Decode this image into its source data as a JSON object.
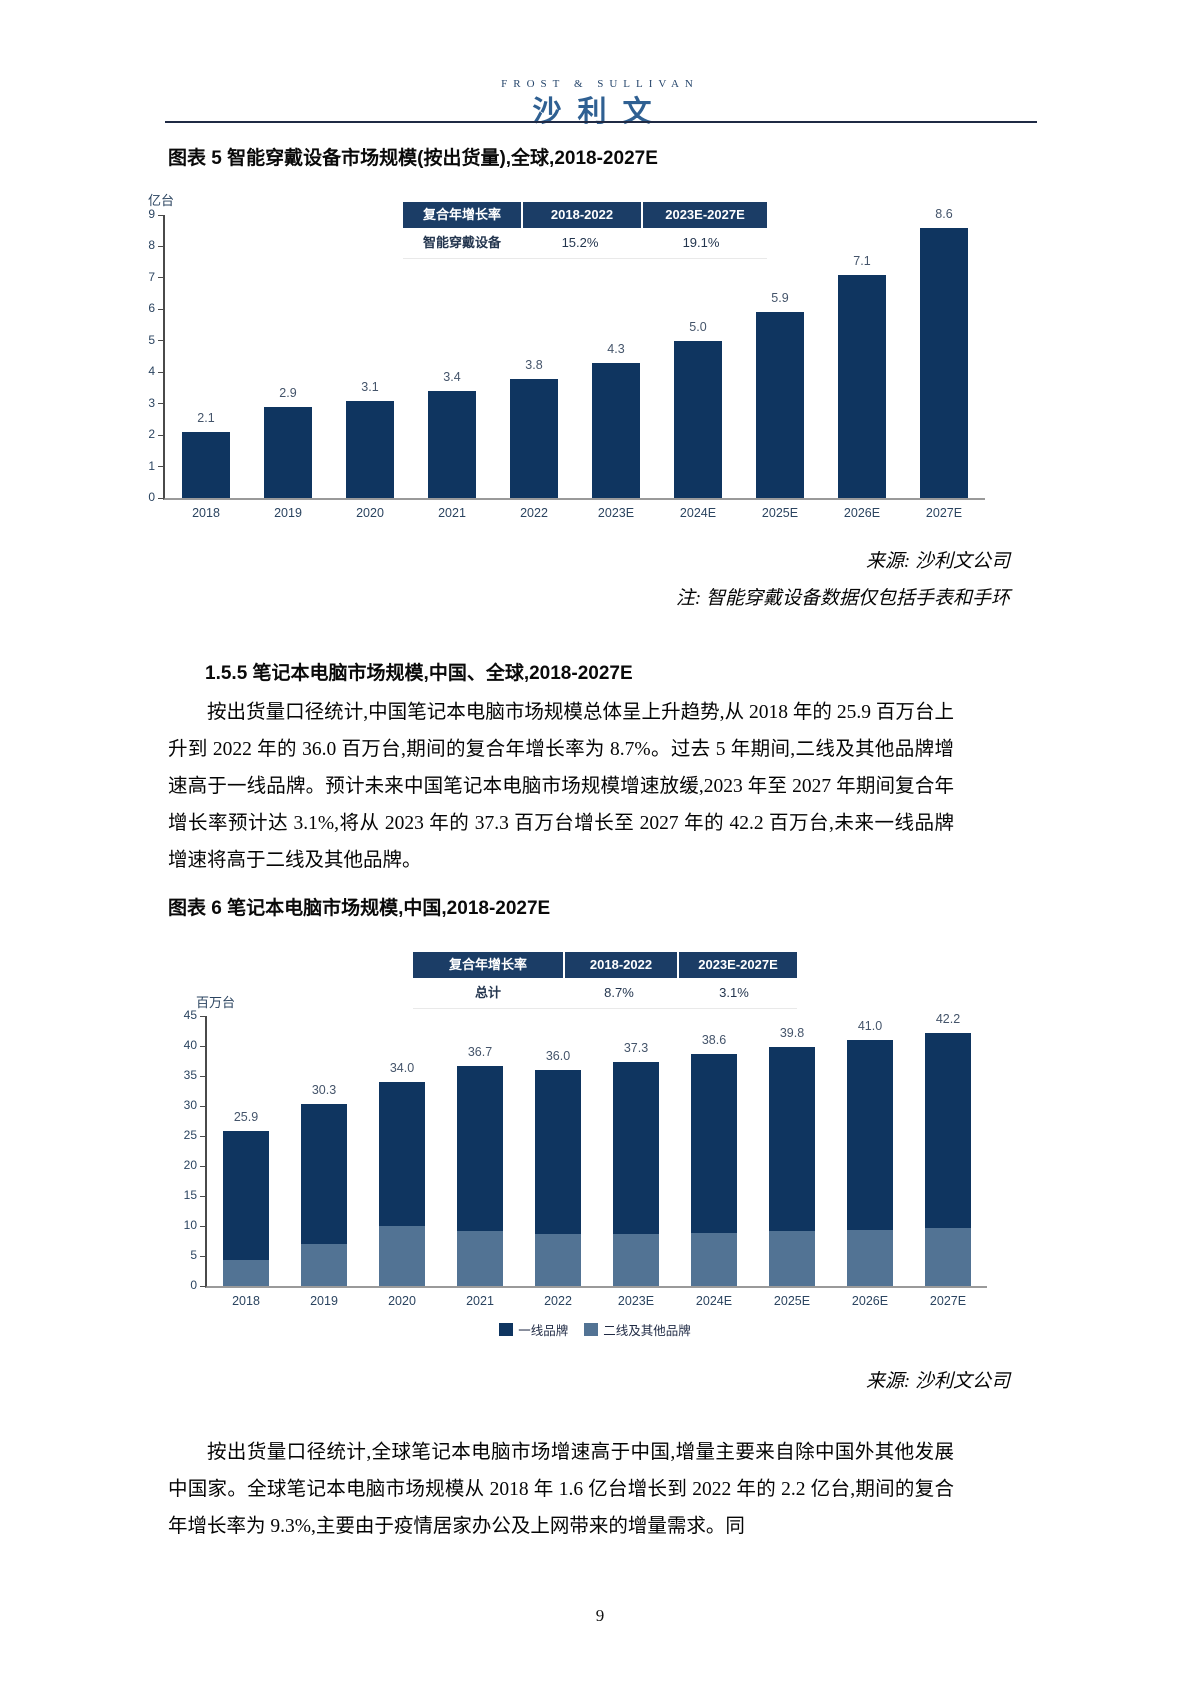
{
  "header": {
    "logo_en": "FROST & SULLIVAN",
    "logo_cn": "沙利文"
  },
  "figure5": {
    "title": "图表 5 智能穿戴设备市场规模(按出货量),全球,2018-2027E",
    "source": "来源: 沙利文公司",
    "note": "注: 智能穿戴设备数据仅包括手表和手环"
  },
  "section": {
    "heading": "1.5.5 笔记本电脑市场规模,中国、全球,2018-2027E",
    "paragraph": "按出货量口径统计,中国笔记本电脑市场规模总体呈上升趋势,从 2018 年的 25.9 百万台上升到 2022 年的 36.0 百万台,期间的复合年增长率为 8.7%。过去 5 年期间,二线及其他品牌增速高于一线品牌。预计未来中国笔记本电脑市场规模增速放缓,2023 年至 2027 年期间复合年增长率预计达 3.1%,将从 2023 年的 37.3 百万台增长至 2027 年的 42.2 百万台,未来一线品牌增速将高于二线及其他品牌。"
  },
  "figure6": {
    "title": "图表 6 笔记本电脑市场规模,中国,2018-2027E",
    "source": "来源: 沙利文公司"
  },
  "closing_paragraph": "按出货量口径统计,全球笔记本电脑市场增速高于中国,增量主要来自除中国外其他发展中国家。全球笔记本电脑市场规模从 2018 年 1.6 亿台增长到 2022 年的 2.2 亿台,期间的复合年增长率为 9.3%,主要由于疫情居家办公及上网带来的增量需求。同",
  "page_number": "9",
  "chart_data": [
    {
      "type": "bar",
      "title": "智能穿戴设备市场规模(按出货量),全球,2018-2027E",
      "categories": [
        "2018",
        "2019",
        "2020",
        "2021",
        "2022",
        "2023E",
        "2024E",
        "2025E",
        "2026E",
        "2027E"
      ],
      "values": [
        2.1,
        2.9,
        3.1,
        3.4,
        3.8,
        4.3,
        5.0,
        5.9,
        7.1,
        8.6
      ],
      "ylabel": "亿台",
      "xlabel": "",
      "ylim": [
        0,
        9
      ],
      "ytick_step": 1,
      "grid": false,
      "bar_color": "#0F3560",
      "cagr": {
        "header": [
          "复合年增长率",
          "2018-2022",
          "2023E-2027E"
        ],
        "rows": [
          {
            "name": "智能穿戴设备",
            "values": [
              "15.2%",
              "19.1%"
            ]
          }
        ]
      }
    },
    {
      "type": "bar",
      "stacked": true,
      "title": "笔记本电脑市场规模,中国,2018-2027E",
      "categories": [
        "2018",
        "2019",
        "2020",
        "2021",
        "2022",
        "2023E",
        "2024E",
        "2025E",
        "2026E",
        "2027E"
      ],
      "series": [
        {
          "name": "一线品牌",
          "color": "#0F3560",
          "values": [
            21.5,
            23.3,
            24.0,
            27.5,
            27.4,
            28.6,
            29.7,
            30.7,
            31.7,
            32.6
          ]
        },
        {
          "name": "二线及其他品牌",
          "color": "#527394",
          "values": [
            4.4,
            7.0,
            10.0,
            9.2,
            8.6,
            8.7,
            8.9,
            9.1,
            9.3,
            9.6
          ]
        }
      ],
      "totals": [
        25.9,
        30.3,
        34.0,
        36.7,
        36.0,
        37.3,
        38.6,
        39.8,
        41.0,
        42.2
      ],
      "ylabel": "百万台",
      "xlabel": "",
      "ylim": [
        0,
        45
      ],
      "ytick_step": 5,
      "grid": false,
      "legend_position": "bottom",
      "cagr": {
        "header": [
          "复合年增长率",
          "2018-2022",
          "2023E-2027E"
        ],
        "rows": [
          {
            "name": "总计",
            "values": [
              "8.7%",
              "3.1%"
            ]
          }
        ]
      }
    }
  ]
}
